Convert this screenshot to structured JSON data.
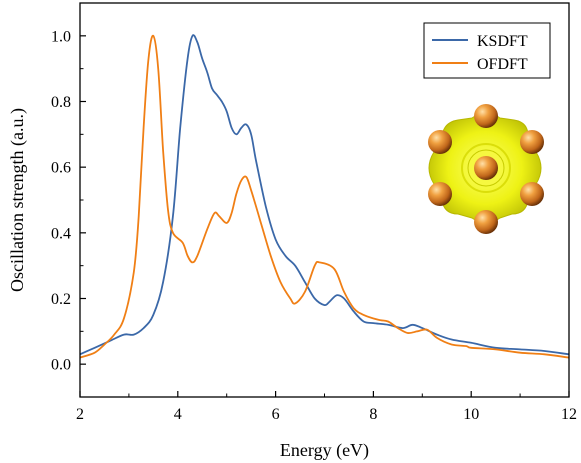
{
  "chart_data": {
    "type": "line",
    "title": "",
    "xlabel": "Energy (eV)",
    "ylabel": "Oscillation strength (a.u.)",
    "xlim": [
      2,
      12
    ],
    "ylim": [
      -0.1,
      1.1
    ],
    "xticks": [
      2,
      4,
      6,
      8,
      10,
      12
    ],
    "yticks": [
      0.0,
      0.2,
      0.4,
      0.6,
      0.8,
      1.0
    ],
    "xtick_labels": [
      "2",
      "4",
      "6",
      "8",
      "10",
      "12"
    ],
    "ytick_labels": [
      "0.0",
      "0.2",
      "0.4",
      "0.6",
      "0.8",
      "1.0"
    ],
    "grid": false,
    "legend_position": "top-right",
    "inset": "isosurface rendering of a cluster: yellow surface with copper-coloured spheres",
    "series": [
      {
        "name": "KSDFT",
        "color": "#3b68a8",
        "points": [
          [
            2.0,
            0.03
          ],
          [
            2.3,
            0.05
          ],
          [
            2.6,
            0.07
          ],
          [
            2.9,
            0.09
          ],
          [
            3.1,
            0.09
          ],
          [
            3.3,
            0.11
          ],
          [
            3.5,
            0.15
          ],
          [
            3.7,
            0.25
          ],
          [
            3.9,
            0.45
          ],
          [
            4.05,
            0.72
          ],
          [
            4.2,
            0.93
          ],
          [
            4.3,
            1.0
          ],
          [
            4.4,
            0.98
          ],
          [
            4.5,
            0.93
          ],
          [
            4.6,
            0.89
          ],
          [
            4.7,
            0.84
          ],
          [
            4.8,
            0.82
          ],
          [
            4.9,
            0.8
          ],
          [
            5.0,
            0.77
          ],
          [
            5.1,
            0.72
          ],
          [
            5.2,
            0.7
          ],
          [
            5.3,
            0.72
          ],
          [
            5.4,
            0.73
          ],
          [
            5.5,
            0.7
          ],
          [
            5.6,
            0.62
          ],
          [
            5.8,
            0.48
          ],
          [
            6.0,
            0.38
          ],
          [
            6.2,
            0.33
          ],
          [
            6.4,
            0.3
          ],
          [
            6.6,
            0.25
          ],
          [
            6.8,
            0.2
          ],
          [
            7.0,
            0.18
          ],
          [
            7.1,
            0.19
          ],
          [
            7.25,
            0.21
          ],
          [
            7.4,
            0.2
          ],
          [
            7.6,
            0.16
          ],
          [
            7.8,
            0.13
          ],
          [
            8.0,
            0.125
          ],
          [
            8.3,
            0.12
          ],
          [
            8.6,
            0.11
          ],
          [
            8.8,
            0.12
          ],
          [
            9.0,
            0.11
          ],
          [
            9.3,
            0.09
          ],
          [
            9.6,
            0.075
          ],
          [
            10.0,
            0.065
          ],
          [
            10.5,
            0.05
          ],
          [
            11.0,
            0.045
          ],
          [
            11.5,
            0.04
          ],
          [
            12.0,
            0.03
          ]
        ]
      },
      {
        "name": "OFDFT",
        "color": "#f07f15",
        "points": [
          [
            2.0,
            0.02
          ],
          [
            2.3,
            0.035
          ],
          [
            2.5,
            0.06
          ],
          [
            2.7,
            0.09
          ],
          [
            2.9,
            0.14
          ],
          [
            3.1,
            0.28
          ],
          [
            3.2,
            0.45
          ],
          [
            3.3,
            0.72
          ],
          [
            3.4,
            0.93
          ],
          [
            3.5,
            1.0
          ],
          [
            3.6,
            0.9
          ],
          [
            3.7,
            0.65
          ],
          [
            3.8,
            0.47
          ],
          [
            3.9,
            0.4
          ],
          [
            4.1,
            0.37
          ],
          [
            4.2,
            0.33
          ],
          [
            4.3,
            0.31
          ],
          [
            4.4,
            0.33
          ],
          [
            4.6,
            0.41
          ],
          [
            4.75,
            0.46
          ],
          [
            4.85,
            0.45
          ],
          [
            5.0,
            0.43
          ],
          [
            5.1,
            0.46
          ],
          [
            5.2,
            0.52
          ],
          [
            5.3,
            0.56
          ],
          [
            5.4,
            0.57
          ],
          [
            5.5,
            0.53
          ],
          [
            5.7,
            0.43
          ],
          [
            5.9,
            0.33
          ],
          [
            6.1,
            0.25
          ],
          [
            6.3,
            0.2
          ],
          [
            6.4,
            0.185
          ],
          [
            6.6,
            0.22
          ],
          [
            6.8,
            0.3
          ],
          [
            6.9,
            0.31
          ],
          [
            7.2,
            0.29
          ],
          [
            7.4,
            0.22
          ],
          [
            7.6,
            0.17
          ],
          [
            7.8,
            0.15
          ],
          [
            8.1,
            0.135
          ],
          [
            8.3,
            0.13
          ],
          [
            8.5,
            0.11
          ],
          [
            8.7,
            0.095
          ],
          [
            8.9,
            0.1
          ],
          [
            9.1,
            0.105
          ],
          [
            9.3,
            0.08
          ],
          [
            9.6,
            0.06
          ],
          [
            9.9,
            0.055
          ],
          [
            10.0,
            0.05
          ],
          [
            10.5,
            0.045
          ],
          [
            11.0,
            0.035
          ],
          [
            11.5,
            0.03
          ],
          [
            12.0,
            0.02
          ]
        ]
      }
    ]
  }
}
